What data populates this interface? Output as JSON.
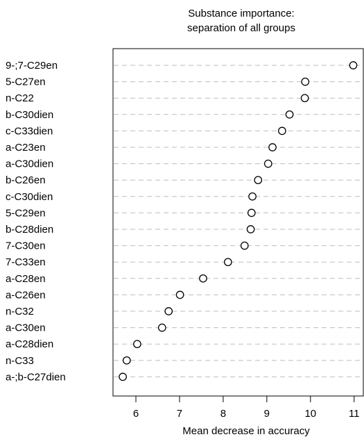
{
  "chart_data": {
    "type": "scatter",
    "title": "Substance importance:\nseparation of all groups",
    "xlabel": "Mean decrease in accuracy",
    "ylabel": "",
    "xlim": [
      5.5,
      11.2
    ],
    "xticks": [
      6,
      7,
      8,
      9,
      10,
      11
    ],
    "grid": "dashed horizontal lines per category",
    "legend": "none",
    "marker": "open circle",
    "categories": [
      "9-;7-C29en",
      "5-C27en",
      "n-C22",
      "b-C30dien",
      "c-C33dien",
      "a-C23en",
      "a-C30dien",
      "b-C26en",
      "c-C30dien",
      "5-C29en",
      "b-C28dien",
      "7-C30en",
      "7-C33en",
      "a-C28en",
      "a-C26en",
      "n-C32",
      "a-C30en",
      "a-C28dien",
      "n-C33",
      "a-;b-C27dien"
    ],
    "values": [
      10.98,
      9.88,
      9.87,
      9.52,
      9.35,
      9.13,
      9.03,
      8.8,
      8.67,
      8.65,
      8.63,
      8.49,
      8.11,
      7.54,
      7.01,
      6.75,
      6.6,
      6.03,
      5.79,
      5.7
    ]
  }
}
